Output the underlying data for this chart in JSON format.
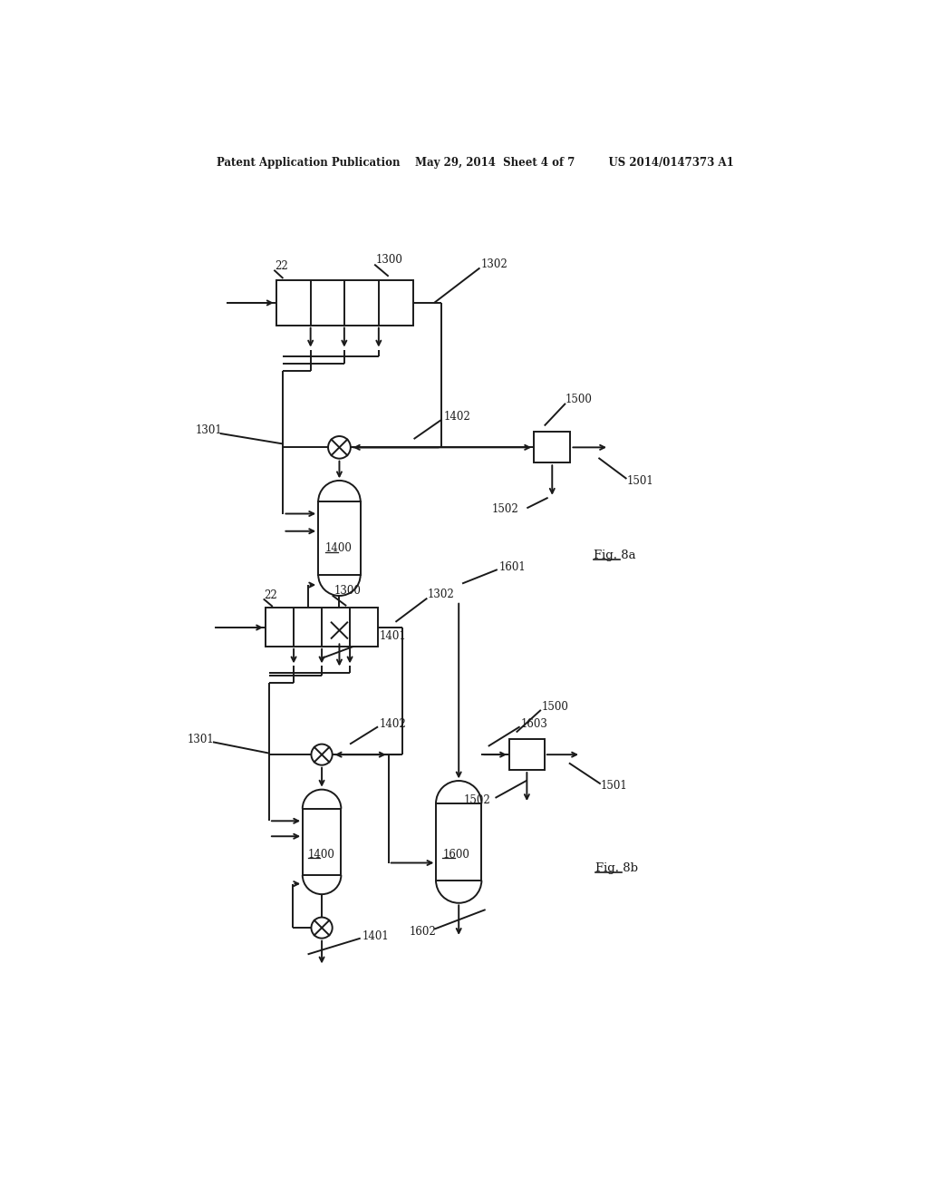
{
  "bg_color": "#ffffff",
  "line_color": "#1a1a1a",
  "text_color": "#1a1a1a",
  "header": "Patent Application Publication    May 29, 2014  Sheet 4 of 7         US 2014/0147373 A1",
  "fig8a_label": "Fig. 8a",
  "fig8b_label": "Fig. 8b",
  "lw": 1.4
}
